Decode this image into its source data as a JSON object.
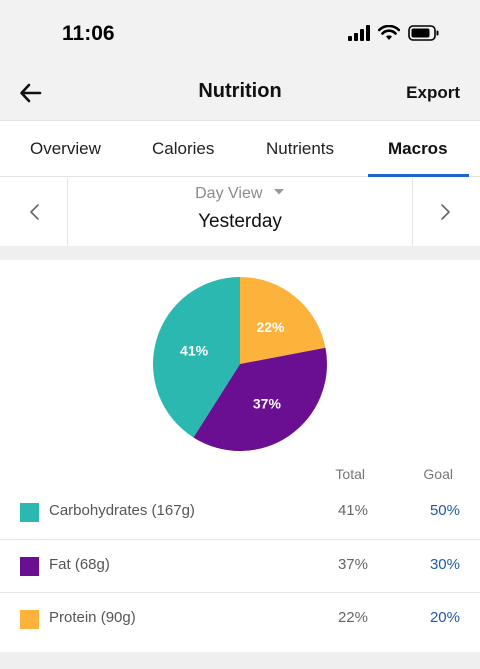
{
  "status": {
    "time": "11:06"
  },
  "header": {
    "title": "Nutrition",
    "export_label": "Export"
  },
  "tabs": [
    {
      "label": "Overview"
    },
    {
      "label": "Calories"
    },
    {
      "label": "Nutrients"
    },
    {
      "label": "Macros",
      "active": true
    }
  ],
  "day": {
    "view_label": "Day View",
    "current": "Yesterday"
  },
  "chart_data": {
    "type": "pie",
    "slices": [
      {
        "label": "22%",
        "value": 22,
        "color": "#fdb23c"
      },
      {
        "label": "37%",
        "value": 37,
        "color": "#6b0f92"
      },
      {
        "label": "41%",
        "value": 41,
        "color": "#2bb8b0"
      }
    ]
  },
  "table": {
    "total_header": "Total",
    "goal_header": "Goal",
    "rows": [
      {
        "name": "Carbohydrates (167g)",
        "total": "41%",
        "goal": "50%",
        "color": "#2bb8b0"
      },
      {
        "name": "Fat (68g)",
        "total": "37%",
        "goal": "30%",
        "color": "#6b0f92"
      },
      {
        "name": "Protein (90g)",
        "total": "22%",
        "goal": "20%",
        "color": "#fdb23c"
      }
    ]
  }
}
